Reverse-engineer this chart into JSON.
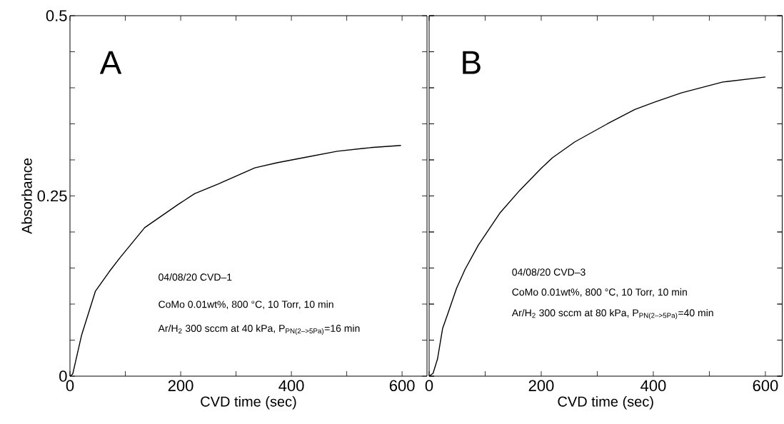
{
  "chart_data": [
    {
      "type": "line",
      "xlabel": "CVD time (sec)",
      "ylabel": "Absorbance",
      "xlim": [
        0,
        645
      ],
      "ylim": [
        0,
        0.5
      ],
      "xticks": [
        0,
        {
          "value": 100,
          "label": null
        },
        200,
        {
          "value": 300,
          "label": null
        },
        400,
        {
          "value": 500,
          "label": null
        },
        600
      ],
      "yticks": [
        0,
        {
          "value": 0.05,
          "label": null
        },
        {
          "value": 0.1,
          "label": null
        },
        {
          "value": 0.15,
          "label": null
        },
        {
          "value": 0.2,
          "label": null
        },
        0.25,
        {
          "value": 0.3,
          "label": null
        },
        {
          "value": 0.35,
          "label": null
        },
        {
          "value": 0.4,
          "label": null
        },
        {
          "value": 0.45,
          "label": null
        },
        0.5
      ],
      "annotations": [
        "A",
        "04/08/20 CVD–1",
        "CoMo 0.01wt%, 800 °C, 10 Torr, 10 min",
        "Ar/H$_{2}$ 300 sccm at 40 kPa, P$_{PN(2–>5Pa)}$=16 min"
      ],
      "series": [
        {
          "color": "#000000",
          "x": [
            0,
            5,
            10,
            21,
            46,
            71,
            90,
            135,
            195,
            225,
            269,
            334,
            374,
            428,
            483,
            543,
            598
          ],
          "values": [
            0,
            0.003,
            0.02,
            0.057,
            0.118,
            0.145,
            0.164,
            0.206,
            0.238,
            0.253,
            0.267,
            0.289,
            0.296,
            0.304,
            0.312,
            0.317,
            0.32
          ]
        }
      ]
    },
    {
      "type": "line",
      "xlabel": "CVD time (sec)",
      "tick_labels": "x",
      "xlim": [
        0,
        630
      ],
      "ylim": [
        0,
        0.5
      ],
      "xticks": [
        0,
        {
          "value": 100,
          "label": null
        },
        200,
        {
          "value": 300,
          "label": null
        },
        400,
        {
          "value": 500,
          "label": null
        },
        600
      ],
      "yticks": [
        {
          "value": 0,
          "label": null
        },
        {
          "value": 0.05,
          "label": null
        },
        {
          "value": 0.1,
          "label": null
        },
        {
          "value": 0.15,
          "label": null
        },
        {
          "value": 0.2,
          "label": null
        },
        {
          "value": 0.25,
          "label": null
        },
        {
          "value": 0.3,
          "label": null
        },
        {
          "value": 0.35,
          "label": null
        },
        {
          "value": 0.4,
          "label": null
        },
        {
          "value": 0.45,
          "label": null
        },
        {
          "value": 0.5,
          "label": null
        }
      ],
      "annotations": [
        "B",
        "04/08/20 CVD–3",
        "CoMo 0.01wt%, 800 °C, 10 Torr, 10 min",
        "Ar/H$_{2}$ 300 sccm at 80 kPa, P$_{PN(2–>5Pa)}$=40 min"
      ],
      "series": [
        {
          "color": "#000000",
          "x": [
            0,
            7,
            15,
            24,
            34,
            49,
            64,
            88,
            127,
            162,
            201,
            220,
            260,
            318,
            367,
            402,
            450,
            524,
            600
          ],
          "values": [
            0,
            0.004,
            0.024,
            0.066,
            0.088,
            0.122,
            0.148,
            0.182,
            0.227,
            0.258,
            0.289,
            0.303,
            0.325,
            0.35,
            0.37,
            0.38,
            0.393,
            0.408,
            0.415
          ]
        }
      ]
    }
  ]
}
